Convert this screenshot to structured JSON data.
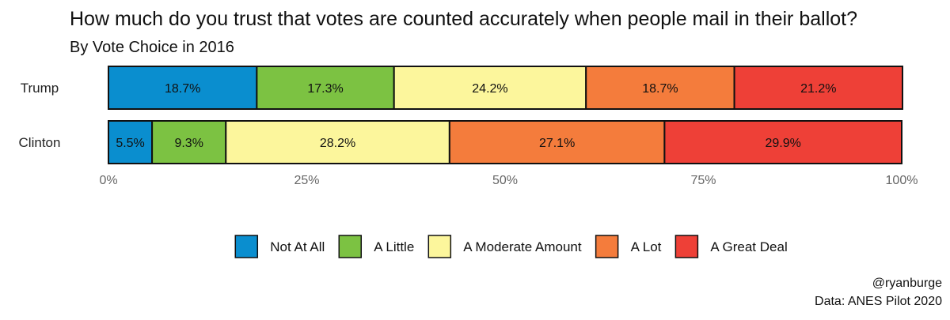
{
  "chart_data": {
    "type": "bar",
    "orientation": "horizontal",
    "stacked": true,
    "title": "How much do you trust that votes are counted accurately when people mail in their ballot?",
    "subtitle": "By Vote Choice in 2016",
    "categories": [
      "Trump",
      "Clinton"
    ],
    "series": [
      {
        "name": "Not At All",
        "color": "#0a8ecf",
        "values": [
          18.7,
          5.5
        ]
      },
      {
        "name": "A Little",
        "color": "#7cc242",
        "values": [
          17.3,
          9.3
        ]
      },
      {
        "name": "A Moderate Amount",
        "color": "#fcf69c",
        "values": [
          24.2,
          28.2
        ]
      },
      {
        "name": "A Lot",
        "color": "#f47c3c",
        "values": [
          18.7,
          27.1
        ]
      },
      {
        "name": "A Great Deal",
        "color": "#ee4037",
        "values": [
          21.2,
          29.9
        ]
      }
    ],
    "data_labels": [
      [
        "18.7%",
        "5.5%"
      ],
      [
        "17.3%",
        "9.3%"
      ],
      [
        "24.2%",
        "28.2%"
      ],
      [
        "18.7%",
        "27.1%"
      ],
      [
        "21.2%",
        "29.9%"
      ]
    ],
    "xlim": [
      0,
      100
    ],
    "xticks": [
      0,
      25,
      50,
      75,
      100
    ],
    "xtick_labels": [
      "0%",
      "25%",
      "50%",
      "75%",
      "100%"
    ],
    "xlabel": "",
    "ylabel": "",
    "grid": false,
    "legend_position": "bottom",
    "caption_lines": [
      "@ryanburge",
      "Data: ANES Pilot 2020"
    ]
  }
}
